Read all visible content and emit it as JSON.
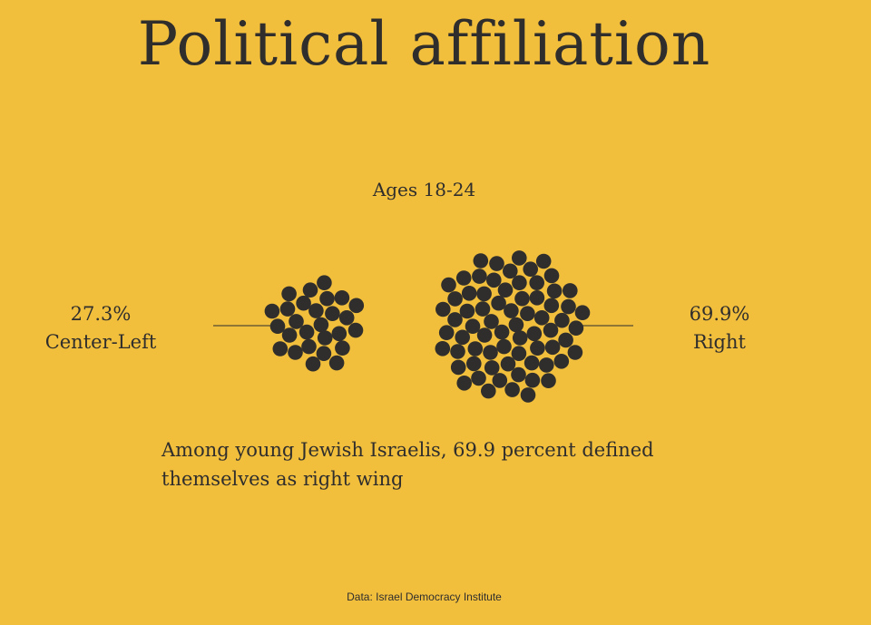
{
  "title": "Political affiliation",
  "caption": "Among young Jewish Israelis, 69.9 percent defined themselves as right wing",
  "source": "Data: Israel Democracy Institute",
  "colors": {
    "background": "#f2bf3d",
    "dot": "#2f2e2d",
    "text": "#2f2e2d"
  },
  "chart_data": {
    "type": "bubble-cluster",
    "subtitle": "Ages 18-24",
    "series": [
      {
        "name": "Center-Left",
        "value": 27.3,
        "label": "27.3%"
      },
      {
        "name": "Right",
        "value": 69.9,
        "label": "69.9%"
      }
    ]
  }
}
